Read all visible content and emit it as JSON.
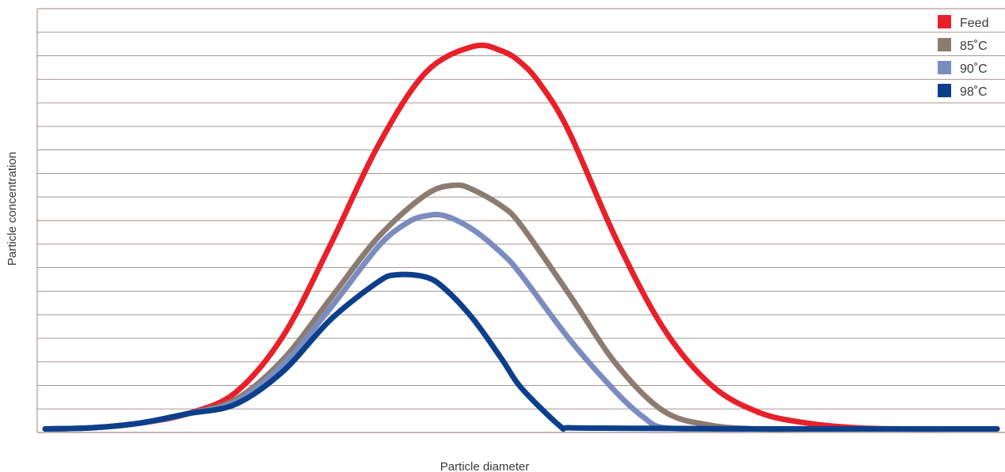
{
  "chart_data": {
    "type": "line",
    "title": "",
    "xlabel": "Particle diameter",
    "ylabel": "Particle concentration",
    "x_ticks_shown": false,
    "y_ticks_shown": false,
    "grid": "horizontal",
    "gridlines": 18,
    "xlim": [
      0,
      100
    ],
    "ylim": [
      0,
      18
    ],
    "legend_position": "top-right",
    "grid_color": "#9a8880",
    "series": [
      {
        "name": "Feed",
        "color": "#e8202a",
        "x": [
          0,
          5,
          10,
          15,
          20,
          25,
          30,
          35,
          40,
          45,
          48,
          50,
          52,
          55,
          60,
          65,
          70,
          75,
          80,
          85,
          90,
          95,
          100
        ],
        "y": [
          0.15,
          0.2,
          0.4,
          0.8,
          1.7,
          4.1,
          8.0,
          12.2,
          15.3,
          16.4,
          16.2,
          15.7,
          14.8,
          12.8,
          8.2,
          4.4,
          2.0,
          0.85,
          0.4,
          0.2,
          0.15,
          0.15,
          0.15
        ]
      },
      {
        "name": "85˚C",
        "color": "#8c7b70",
        "x": [
          0,
          5,
          10,
          15,
          20,
          25,
          30,
          35,
          40,
          43,
          45,
          48,
          50,
          55,
          60,
          65,
          70,
          75,
          80,
          85,
          90,
          95,
          100
        ],
        "y": [
          0.15,
          0.2,
          0.4,
          0.8,
          1.4,
          3.1,
          5.7,
          8.3,
          10.1,
          10.5,
          10.3,
          9.6,
          8.8,
          5.9,
          2.9,
          0.9,
          0.3,
          0.15,
          0.15,
          0.15,
          0.15,
          0.15,
          0.15
        ]
      },
      {
        "name": "90˚C",
        "color": "#7b8cbf",
        "x": [
          0,
          5,
          10,
          15,
          20,
          25,
          30,
          35,
          38,
          40,
          42,
          45,
          48,
          50,
          55,
          60,
          63,
          65,
          70,
          75,
          80,
          85,
          90,
          95,
          100
        ],
        "y": [
          0.15,
          0.2,
          0.4,
          0.8,
          1.3,
          2.9,
          5.3,
          7.9,
          8.9,
          9.2,
          9.2,
          8.6,
          7.6,
          6.7,
          4.0,
          1.7,
          0.6,
          0.2,
          0.15,
          0.15,
          0.15,
          0.15,
          0.15,
          0.15,
          0.15
        ]
      },
      {
        "name": "98˚C",
        "color": "#0c3f8b",
        "x": [
          0,
          5,
          10,
          15,
          20,
          25,
          30,
          35,
          37,
          40,
          42,
          45,
          48,
          50,
          54,
          55,
          60,
          65,
          70,
          75,
          80,
          85,
          90,
          95,
          100
        ],
        "y": [
          0.15,
          0.2,
          0.4,
          0.8,
          1.2,
          2.6,
          4.8,
          6.4,
          6.7,
          6.6,
          6.1,
          4.8,
          3.1,
          1.9,
          0.3,
          0.2,
          0.18,
          0.17,
          0.16,
          0.15,
          0.15,
          0.15,
          0.15,
          0.15,
          0.15
        ]
      }
    ]
  }
}
